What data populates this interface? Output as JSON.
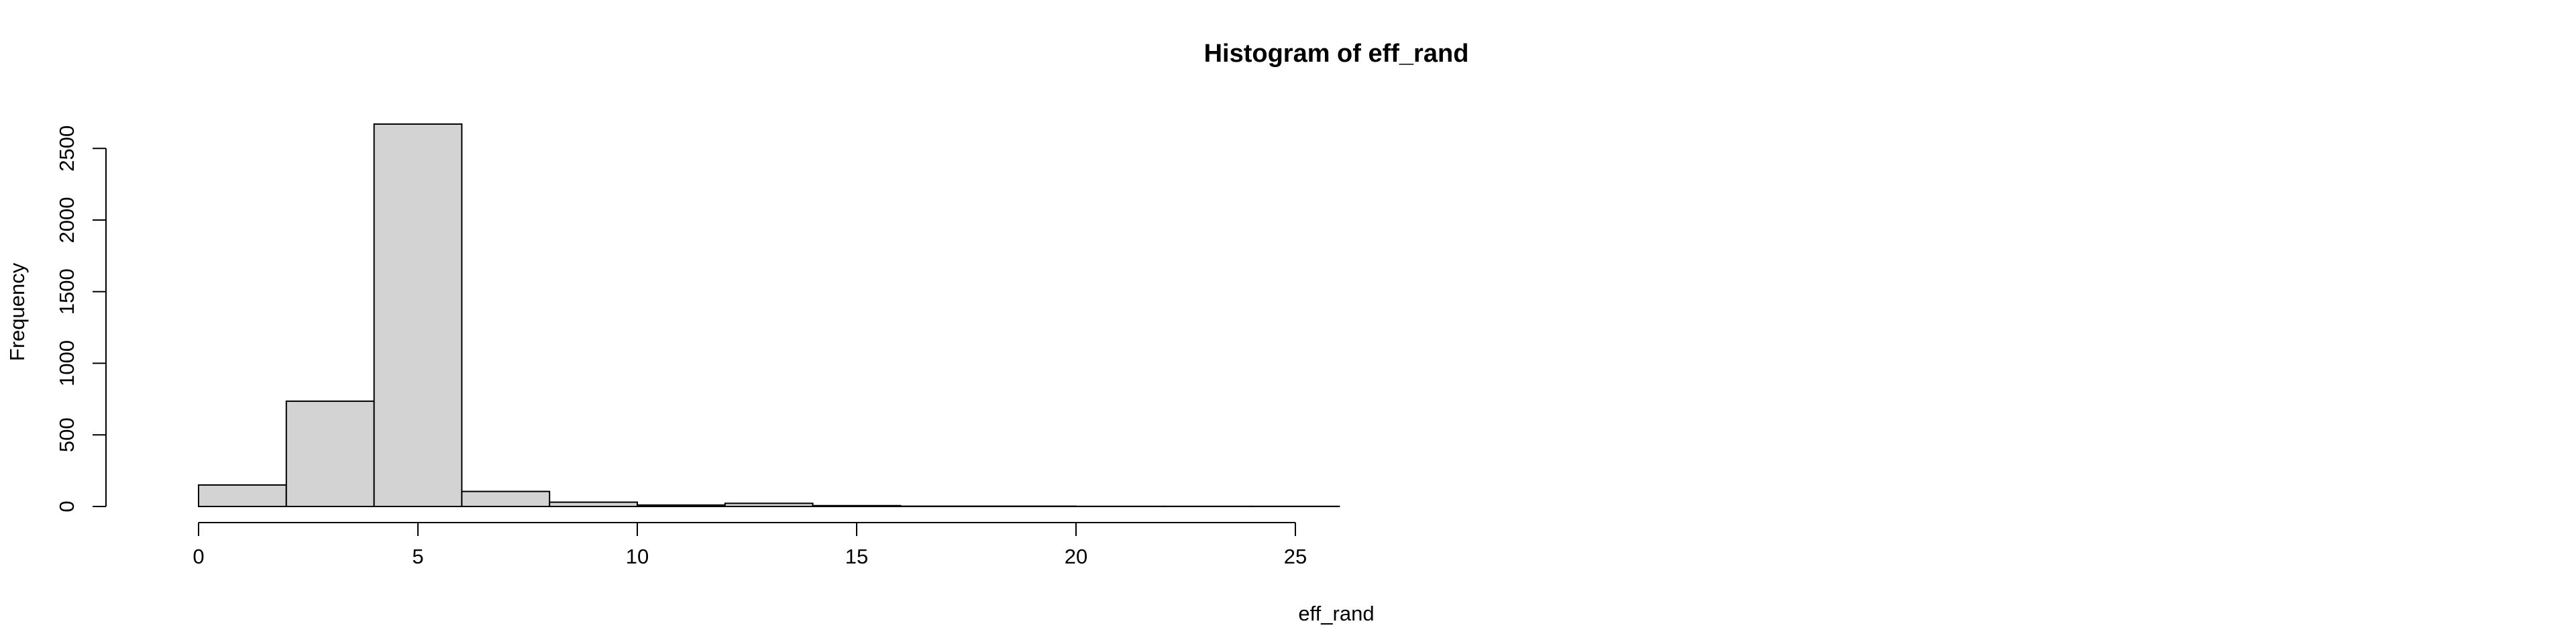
{
  "chart_data": {
    "type": "bar",
    "title": "Histogram of eff_rand",
    "xlabel": "eff_rand",
    "ylabel": "Frequency",
    "bins": [
      {
        "from": 0,
        "to": 2,
        "count": 150
      },
      {
        "from": 2,
        "to": 4,
        "count": 735
      },
      {
        "from": 4,
        "to": 6,
        "count": 2670
      },
      {
        "from": 6,
        "to": 8,
        "count": 105
      },
      {
        "from": 8,
        "to": 10,
        "count": 30
      },
      {
        "from": 10,
        "to": 12,
        "count": 10
      },
      {
        "from": 12,
        "to": 14,
        "count": 22
      },
      {
        "from": 14,
        "to": 16,
        "count": 6
      },
      {
        "from": 16,
        "to": 18,
        "count": 2
      },
      {
        "from": 18,
        "to": 20,
        "count": 2
      },
      {
        "from": 20,
        "to": 22,
        "count": 1
      },
      {
        "from": 22,
        "to": 24,
        "count": 1
      },
      {
        "from": 24,
        "to": 26,
        "count": 1
      }
    ],
    "xlim": [
      0,
      26
    ],
    "ylim": [
      0,
      2670
    ],
    "x_ticks": [
      0,
      5,
      10,
      15,
      20,
      25
    ],
    "y_ticks": [
      0,
      500,
      1000,
      1500,
      2000,
      2500
    ],
    "x_tick_labels": [
      "0",
      "5",
      "10",
      "15",
      "20",
      "25"
    ],
    "y_tick_labels": [
      "0",
      "500",
      "1000",
      "1500",
      "2000",
      "2500"
    ],
    "grid": false,
    "bar_color": "#d3d3d3",
    "edge_color": "#000000"
  }
}
